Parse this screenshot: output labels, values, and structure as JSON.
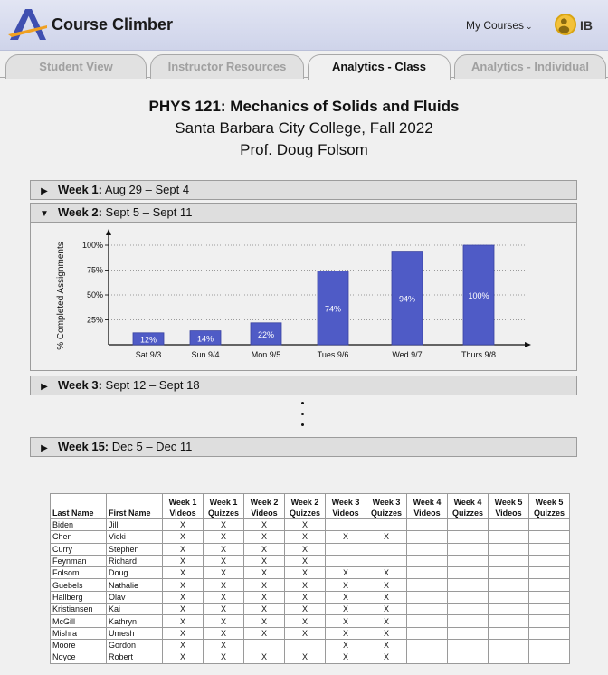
{
  "header": {
    "brand": "Course Climber",
    "my_courses_label": "My Courses",
    "user_initials": "IB"
  },
  "tabs": [
    {
      "label": "Student View",
      "active": false
    },
    {
      "label": "Instructor Resources",
      "active": false
    },
    {
      "label": "Analytics - Class",
      "active": true
    },
    {
      "label": "Analytics - Individual",
      "active": false
    }
  ],
  "course": {
    "title": "PHYS 121: Mechanics of Solids and Fluids",
    "school_term": "Santa Barbara City College, Fall 2022",
    "instructor": "Prof. Doug Folsom"
  },
  "weeks": [
    {
      "label": "Week 1:",
      "dates": "Aug 29 – Sept 4",
      "expanded": false
    },
    {
      "label": "Week 2:",
      "dates": "Sept 5 – Sept 11",
      "expanded": true
    },
    {
      "label": "Week 3:",
      "dates": "Sept 12 – Sept 18",
      "expanded": false
    },
    {
      "label": "Week 15:",
      "dates": "Dec 5 – Dec 11",
      "expanded": false
    }
  ],
  "chart_data": {
    "type": "bar",
    "ylabel": "% Completed Assignments",
    "yticks": [
      "25%",
      "50%",
      "75%",
      "100%"
    ],
    "ylim": [
      0,
      100
    ],
    "categories": [
      "Sat 9/3",
      "Sun 9/4",
      "Mon 9/5",
      "Tues 9/6",
      "Wed 9/7",
      "Thurs 9/8"
    ],
    "values": [
      12,
      14,
      22,
      74,
      94,
      100
    ],
    "value_labels": [
      "12%",
      "14%",
      "22%",
      "74%",
      "94%",
      "100%"
    ],
    "bar_color": "#4f5bc6",
    "grid": true
  },
  "table": {
    "headers": [
      [
        "",
        "Last Name"
      ],
      [
        "",
        "First Name"
      ],
      [
        "Week 1",
        "Videos"
      ],
      [
        "Week 1",
        "Quizzes"
      ],
      [
        "Week 2",
        "Videos"
      ],
      [
        "Week 2",
        "Quizzes"
      ],
      [
        "Week 3",
        "Videos"
      ],
      [
        "Week 3",
        "Quizzes"
      ],
      [
        "Week 4",
        "Videos"
      ],
      [
        "Week 4",
        "Quizzes"
      ],
      [
        "Week 5",
        "Videos"
      ],
      [
        "Week 5",
        "Quizzes"
      ]
    ],
    "rows": [
      [
        "Biden",
        "Jill",
        "X",
        "X",
        "X",
        "X",
        "",
        "",
        "",
        "",
        "",
        ""
      ],
      [
        "Chen",
        "Vicki",
        "X",
        "X",
        "X",
        "X",
        "X",
        "X",
        "",
        "",
        "",
        ""
      ],
      [
        "Curry",
        "Stephen",
        "X",
        "X",
        "X",
        "X",
        "",
        "",
        "",
        "",
        "",
        ""
      ],
      [
        "Feynman",
        "Richard",
        "X",
        "X",
        "X",
        "X",
        "",
        "",
        "",
        "",
        "",
        ""
      ],
      [
        "Folsom",
        "Doug",
        "X",
        "X",
        "X",
        "X",
        "X",
        "X",
        "",
        "",
        "",
        ""
      ],
      [
        "Guebels",
        "Nathalie",
        "X",
        "X",
        "X",
        "X",
        "X",
        "X",
        "",
        "",
        "",
        ""
      ],
      [
        "Hallberg",
        "Olav",
        "X",
        "X",
        "X",
        "X",
        "X",
        "X",
        "",
        "",
        "",
        ""
      ],
      [
        "Kristiansen",
        "Kai",
        "X",
        "X",
        "X",
        "X",
        "X",
        "X",
        "",
        "",
        "",
        ""
      ],
      [
        "McGill",
        "Kathryn",
        "X",
        "X",
        "X",
        "X",
        "X",
        "X",
        "",
        "",
        "",
        ""
      ],
      [
        "Mishra",
        "Umesh",
        "X",
        "X",
        "X",
        "X",
        "X",
        "X",
        "",
        "",
        "",
        ""
      ],
      [
        "Moore",
        "Gordon",
        "X",
        "X",
        "",
        "",
        "X",
        "X",
        "",
        "",
        "",
        ""
      ],
      [
        "Noyce",
        "Robert",
        "X",
        "X",
        "X",
        "X",
        "X",
        "X",
        "",
        "",
        "",
        ""
      ]
    ]
  },
  "colors": {
    "header_bg": "#d6daee",
    "bar": "#4f5bc6",
    "avatar": "#f3c13a",
    "logo_blue": "#3f4fb0",
    "logo_orange": "#f0a020"
  }
}
